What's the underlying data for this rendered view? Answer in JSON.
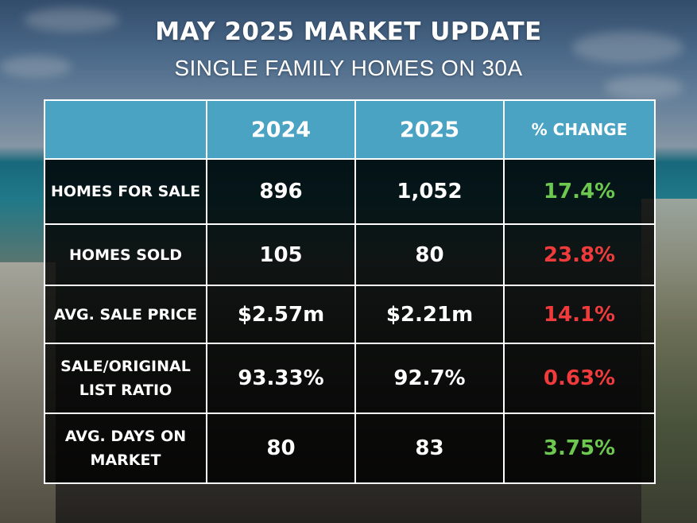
{
  "header": {
    "title": "MAY 2025 MARKET UPDATE",
    "subtitle": "SINGLE FAMILY HOMES ON 30A"
  },
  "table": {
    "columns": [
      "",
      "2024",
      "2025",
      "% CHANGE"
    ],
    "rows": [
      {
        "label": "HOMES FOR SALE",
        "y2024": "896",
        "y2025": "1,052",
        "change": "17.4%",
        "trend": "up"
      },
      {
        "label": "HOMES SOLD",
        "y2024": "105",
        "y2025": "80",
        "change": "23.8%",
        "trend": "down"
      },
      {
        "label": "AVG. SALE PRICE",
        "y2024": "$2.57m",
        "y2025": "$2.21m",
        "change": "14.1%",
        "trend": "down"
      },
      {
        "label": "SALE/ORIGINAL LIST RATIO",
        "y2024": "93.33%",
        "y2025": "92.7%",
        "change": "0.63%",
        "trend": "down"
      },
      {
        "label": "AVG. DAYS ON MARKET",
        "y2024": "80",
        "y2025": "83",
        "change": "3.75%",
        "trend": "up"
      }
    ]
  },
  "colors": {
    "header_blue": "#4aa3c2",
    "positive_green": "#6cc84f",
    "negative_red": "#ef3b3b",
    "cell_black": "#000000",
    "text_white": "#ffffff"
  }
}
